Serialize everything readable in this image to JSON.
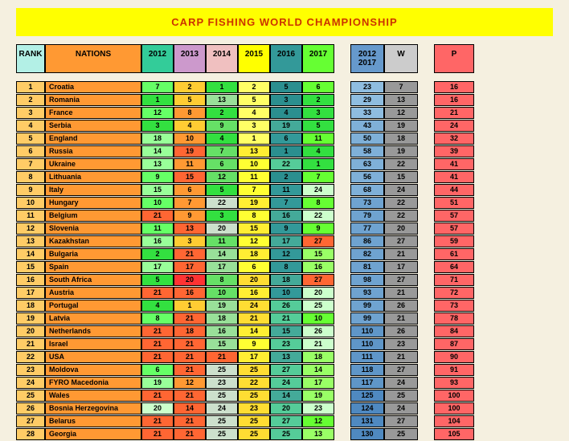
{
  "title": "CARP FISHING WORLD CHAMPIONSHIP",
  "colors": {
    "rank_header": "#b3f0e6",
    "nations_header": "#ff9933",
    "y2012_header": "#33cc99",
    "y2013_header": "#cc99cc",
    "y2014_header": "#f0c0c0",
    "y2015_header": "yellow",
    "y2016_header": "#339999",
    "y2017_header": "#66ff33",
    "sum_header": "#6699cc",
    "w_header": "#cccccc",
    "p_header": "#ff6666",
    "rank_cell": "#ffcc66",
    "nation_cell": "#ff9933",
    "w_cell": "#999999",
    "p_cell": "#ff6666"
  },
  "widths": {
    "rank": 36,
    "nation": 120,
    "year": 40,
    "sum": 42,
    "w": 42,
    "p": 50
  },
  "headers": {
    "rank": "RANK",
    "nations": "NATIONS",
    "years": [
      "2012",
      "2013",
      "2014",
      "2015",
      "2016",
      "2017"
    ],
    "sum": "2012 2017",
    "w": "W",
    "p": "P"
  },
  "year_gradients": {
    "top": [
      "#33e040",
      "#ffcc33",
      "#33e040",
      "#ffff66",
      "#2b8f8f",
      "#33e040"
    ],
    "upper": [
      "#66ff66",
      "#ff9933",
      "#66e066",
      "#ffff33",
      "#339999",
      "#66ff33"
    ],
    "mid": [
      "#99ff99",
      "#ff6633",
      "#99e099",
      "#ffee33",
      "#44aa99",
      "#99ff66"
    ],
    "low": [
      "#ccffcc",
      "#ff3333",
      "#cce0cc",
      "#ffdd33",
      "#55cc99",
      "#ccffcc"
    ]
  },
  "sum_gradient": [
    "#8fbde0",
    "#7fb0d8",
    "#6fa3d0",
    "#5f96c8",
    "#4f89c0"
  ],
  "highlights": {
    "max_value_color": "#ff6633"
  },
  "rows": [
    {
      "rank": 1,
      "nation": "Croatia",
      "y": [
        7,
        2,
        1,
        2,
        5,
        6
      ],
      "sum": 23,
      "w": 7,
      "p": 16
    },
    {
      "rank": 2,
      "nation": "Romania",
      "y": [
        1,
        5,
        13,
        5,
        3,
        2
      ],
      "sum": 29,
      "w": 13,
      "p": 16
    },
    {
      "rank": 3,
      "nation": "France",
      "y": [
        12,
        8,
        2,
        4,
        4,
        3
      ],
      "sum": 33,
      "w": 12,
      "p": 21
    },
    {
      "rank": 4,
      "nation": "Serbia",
      "y": [
        3,
        4,
        9,
        3,
        19,
        5
      ],
      "sum": 43,
      "w": 19,
      "p": 24
    },
    {
      "rank": 5,
      "nation": "England",
      "y": [
        18,
        10,
        4,
        1,
        6,
        11
      ],
      "sum": 50,
      "w": 18,
      "p": 32
    },
    {
      "rank": 6,
      "nation": "Russia",
      "y": [
        14,
        19,
        7,
        13,
        1,
        4
      ],
      "sum": 58,
      "w": 19,
      "p": 39
    },
    {
      "rank": 7,
      "nation": "Ukraine",
      "y": [
        13,
        11,
        6,
        10,
        22,
        1
      ],
      "sum": 63,
      "w": 22,
      "p": 41
    },
    {
      "rank": 8,
      "nation": "Lithuania",
      "y": [
        9,
        15,
        12,
        11,
        2,
        7
      ],
      "sum": 56,
      "w": 15,
      "p": 41
    },
    {
      "rank": 9,
      "nation": "Italy",
      "y": [
        15,
        6,
        5,
        7,
        11,
        24
      ],
      "sum": 68,
      "w": 24,
      "p": 44
    },
    {
      "rank": 10,
      "nation": "Hungary",
      "y": [
        10,
        7,
        22,
        19,
        7,
        8
      ],
      "sum": 73,
      "w": 22,
      "p": 51
    },
    {
      "rank": 11,
      "nation": "Belgium",
      "y": [
        21,
        9,
        3,
        8,
        16,
        22
      ],
      "sum": 79,
      "w": 22,
      "p": 57,
      "hl": [
        0
      ]
    },
    {
      "rank": 12,
      "nation": "Slovenia",
      "y": [
        11,
        13,
        20,
        15,
        9,
        9
      ],
      "sum": 77,
      "w": 20,
      "p": 57
    },
    {
      "rank": 13,
      "nation": "Kazakhstan",
      "y": [
        16,
        3,
        11,
        12,
        17,
        27
      ],
      "sum": 86,
      "w": 27,
      "p": 59,
      "hl": [
        5
      ]
    },
    {
      "rank": 14,
      "nation": "Bulgaria",
      "y": [
        2,
        21,
        14,
        18,
        12,
        15
      ],
      "sum": 82,
      "w": 21,
      "p": 61,
      "hl": [
        1
      ]
    },
    {
      "rank": 15,
      "nation": "Spain",
      "y": [
        17,
        17,
        17,
        6,
        8,
        16
      ],
      "sum": 81,
      "w": 17,
      "p": 64
    },
    {
      "rank": 16,
      "nation": "South Africa",
      "y": [
        5,
        20,
        8,
        20,
        18,
        27
      ],
      "sum": 98,
      "w": 27,
      "p": 71,
      "hl": [
        5
      ]
    },
    {
      "rank": 17,
      "nation": "Austria",
      "y": [
        21,
        16,
        10,
        16,
        10,
        20
      ],
      "sum": 93,
      "w": 21,
      "p": 72,
      "hl": [
        0
      ]
    },
    {
      "rank": 18,
      "nation": "Portugal",
      "y": [
        4,
        1,
        19,
        24,
        26,
        25
      ],
      "sum": 99,
      "w": 26,
      "p": 73
    },
    {
      "rank": 19,
      "nation": "Latvia",
      "y": [
        8,
        21,
        18,
        21,
        21,
        10
      ],
      "sum": 99,
      "w": 21,
      "p": 78,
      "hl": [
        1
      ]
    },
    {
      "rank": 20,
      "nation": "Netherlands",
      "y": [
        21,
        18,
        16,
        14,
        15,
        26
      ],
      "sum": 110,
      "w": 26,
      "p": 84,
      "hl": [
        0
      ]
    },
    {
      "rank": 21,
      "nation": "Israel",
      "y": [
        21,
        21,
        15,
        9,
        23,
        21
      ],
      "sum": 110,
      "w": 23,
      "p": 87,
      "hl": [
        0,
        1
      ]
    },
    {
      "rank": 22,
      "nation": "USA",
      "y": [
        21,
        21,
        21,
        17,
        13,
        18
      ],
      "sum": 111,
      "w": 21,
      "p": 90,
      "hl": [
        0,
        1,
        2
      ]
    },
    {
      "rank": 23,
      "nation": "Moldova",
      "y": [
        6,
        21,
        25,
        25,
        27,
        14
      ],
      "sum": 118,
      "w": 27,
      "p": 91,
      "hl": [
        1
      ]
    },
    {
      "rank": 24,
      "nation": "FYRO Macedonia",
      "y": [
        19,
        12,
        23,
        22,
        24,
        17
      ],
      "sum": 117,
      "w": 24,
      "p": 93
    },
    {
      "rank": 25,
      "nation": "Wales",
      "y": [
        21,
        21,
        25,
        25,
        14,
        19
      ],
      "sum": 125,
      "w": 25,
      "p": 100,
      "hl": [
        0,
        1
      ]
    },
    {
      "rank": 26,
      "nation": "Bosnia Herzegovina",
      "y": [
        20,
        14,
        24,
        23,
        20,
        23
      ],
      "sum": 124,
      "w": 24,
      "p": 100
    },
    {
      "rank": 27,
      "nation": "Belarus",
      "y": [
        21,
        21,
        25,
        25,
        27,
        12
      ],
      "sum": 131,
      "w": 27,
      "p": 104,
      "hl": [
        0,
        1
      ]
    },
    {
      "rank": 28,
      "nation": "Georgia",
      "y": [
        21,
        21,
        25,
        25,
        25,
        13
      ],
      "sum": 130,
      "w": 25,
      "p": 105,
      "hl": [
        0,
        1
      ]
    }
  ]
}
